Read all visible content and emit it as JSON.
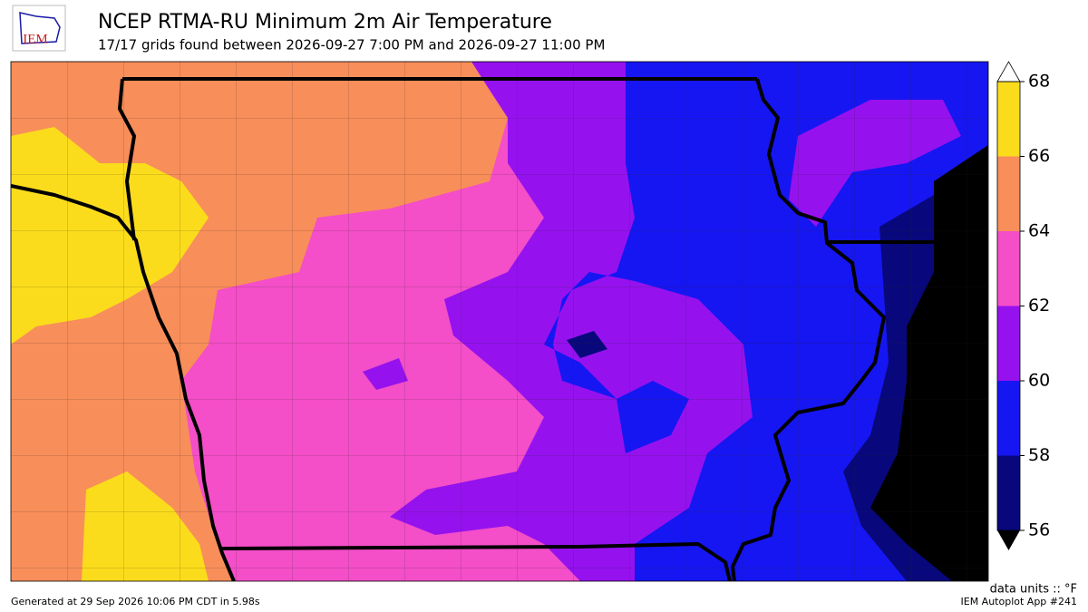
{
  "header": {
    "logo": "IEM",
    "title": "NCEP RTMA-RU Minimum 2m Air Temperature",
    "subtitle": "17/17 grids found between 2026-09-27 7:00 PM and 2026-09-27 11:00 PM"
  },
  "colorbar": {
    "ticks": [
      56,
      58,
      60,
      62,
      64,
      66,
      68
    ],
    "colors": [
      "#08087c",
      "#1616f2",
      "#9512ee",
      "#f44ec8",
      "#f88e5a",
      "#fbdc1c"
    ],
    "under_color": "#000000",
    "over_color": "#ffffff",
    "units": "data units :: °F"
  },
  "footer": {
    "left": "Generated at 29 Sep 2026 10:06 PM CDT in 5.98s",
    "right": "IEM Autoplot App #241"
  }
}
